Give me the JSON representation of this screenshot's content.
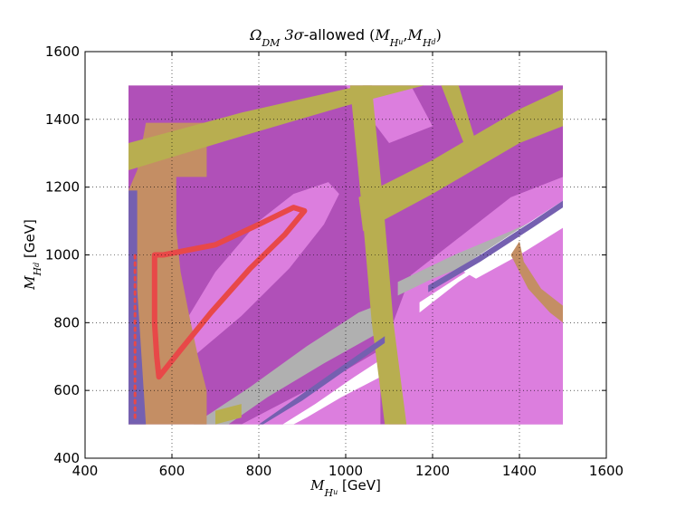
{
  "chart_data": {
    "type": "scatter",
    "title_parts": {
      "omega": "Ω",
      "omega_sub": "DM",
      "sigma": " 3σ",
      "allowed": "-allowed ",
      "open": "(",
      "mhu": "M",
      "hu_sub": "H",
      "hu_subsub": "u",
      "comma": ",",
      "mhd": "M",
      "hd_sub": "H",
      "hd_subsub": "d",
      "close": ")"
    },
    "xlabel_parts": {
      "m": "M",
      "sub": "H",
      "subsub": "u",
      "unit": " [GeV]"
    },
    "ylabel_parts": {
      "m": "M",
      "sub": "H",
      "subsub": "d",
      "unit": " [GeV]"
    },
    "xlim": [
      400,
      1600
    ],
    "ylim": [
      400,
      1600
    ],
    "xticks": [
      "400",
      "600",
      "800",
      "1000",
      "1200",
      "1400",
      "1600"
    ],
    "yticks": [
      "400",
      "600",
      "800",
      "1000",
      "1200",
      "1400",
      "1600"
    ],
    "grid": true,
    "colors": {
      "magenta": "#b050b8",
      "pink": "#dc7ede",
      "olive": "#b8ae50",
      "tan": "#c48e64",
      "gray": "#b0b0b0",
      "purple": "#7560b0",
      "red": "#e84848",
      "white": "#ffffff"
    },
    "regions": [
      {
        "name": "magenta-base",
        "color": "magenta",
        "opacity": 1,
        "points": [
          [
            500,
            500
          ],
          [
            1500,
            500
          ],
          [
            1500,
            1500
          ],
          [
            500,
            1500
          ]
        ]
      },
      {
        "name": "pink-lower-right",
        "color": "pink",
        "opacity": 1,
        "points": [
          [
            1100,
            500
          ],
          [
            1500,
            500
          ],
          [
            1500,
            1230
          ],
          [
            1380,
            1170
          ],
          [
            1150,
            940
          ],
          [
            1080,
            700
          ]
        ]
      },
      {
        "name": "pink-triangle-region",
        "color": "pink",
        "opacity": 1,
        "points": [
          [
            560,
            620
          ],
          [
            620,
            780
          ],
          [
            700,
            950
          ],
          [
            800,
            1100
          ],
          [
            880,
            1180
          ],
          [
            960,
            1215
          ],
          [
            985,
            1180
          ],
          [
            950,
            1090
          ],
          [
            870,
            960
          ],
          [
            760,
            820
          ],
          [
            640,
            690
          ]
        ]
      },
      {
        "name": "pink-bottom-wedge",
        "color": "pink",
        "opacity": 1,
        "points": [
          [
            760,
            500
          ],
          [
            880,
            580
          ],
          [
            1000,
            660
          ],
          [
            1080,
            720
          ],
          [
            1080,
            500
          ]
        ]
      },
      {
        "name": "pink-upper-left-strip",
        "color": "pink",
        "opacity": 1,
        "points": [
          [
            1000,
            1500
          ],
          [
            1150,
            1500
          ],
          [
            1200,
            1380
          ],
          [
            1100,
            1330
          ]
        ]
      },
      {
        "name": "gray-lower-band",
        "color": "gray",
        "opacity": 1,
        "points": [
          [
            650,
            500
          ],
          [
            780,
            610
          ],
          [
            910,
            730
          ],
          [
            1030,
            830
          ],
          [
            1090,
            860
          ],
          [
            1090,
            780
          ],
          [
            950,
            680
          ],
          [
            820,
            580
          ],
          [
            730,
            500
          ]
        ]
      },
      {
        "name": "gray-upper-band",
        "color": "gray",
        "opacity": 1,
        "points": [
          [
            1120,
            920
          ],
          [
            1250,
            1000
          ],
          [
            1380,
            1070
          ],
          [
            1500,
            1140
          ],
          [
            1500,
            1090
          ],
          [
            1360,
            1010
          ],
          [
            1200,
            930
          ],
          [
            1120,
            880
          ]
        ]
      },
      {
        "name": "white-lower-band",
        "color": "white",
        "opacity": 1,
        "points": [
          [
            855,
            500
          ],
          [
            930,
            560
          ],
          [
            1020,
            640
          ],
          [
            1080,
            690
          ],
          [
            1080,
            640
          ],
          [
            990,
            580
          ],
          [
            910,
            520
          ],
          [
            880,
            500
          ]
        ]
      },
      {
        "name": "white-upper-band-1",
        "color": "white",
        "opacity": 1,
        "points": [
          [
            1170,
            860
          ],
          [
            1290,
            960
          ],
          [
            1410,
            1060
          ],
          [
            1480,
            1130
          ],
          [
            1480,
            1100
          ],
          [
            1380,
            1020
          ],
          [
            1260,
            920
          ],
          [
            1170,
            830
          ]
        ]
      },
      {
        "name": "white-upper-band-2",
        "color": "white",
        "opacity": 1,
        "points": [
          [
            1260,
            960
          ],
          [
            1380,
            1060
          ],
          [
            1500,
            1160
          ],
          [
            1500,
            1080
          ],
          [
            1400,
            1000
          ],
          [
            1300,
            930
          ]
        ]
      },
      {
        "name": "tan-left-block",
        "color": "tan",
        "opacity": 1,
        "points": [
          [
            500,
            500
          ],
          [
            680,
            500
          ],
          [
            680,
            600
          ],
          [
            660,
            700
          ],
          [
            640,
            820
          ],
          [
            620,
            950
          ],
          [
            610,
            1070
          ],
          [
            610,
            1230
          ],
          [
            680,
            1230
          ],
          [
            680,
            1390
          ],
          [
            540,
            1390
          ],
          [
            520,
            1250
          ],
          [
            500,
            1190
          ]
        ]
      },
      {
        "name": "tan-right-curve",
        "color": "tan",
        "opacity": 1,
        "points": [
          [
            1380,
            1000
          ],
          [
            1420,
            900
          ],
          [
            1470,
            830
          ],
          [
            1500,
            800
          ],
          [
            1500,
            850
          ],
          [
            1450,
            900
          ],
          [
            1410,
            980
          ],
          [
            1400,
            1040
          ]
        ]
      },
      {
        "name": "olive-top-band",
        "color": "olive",
        "opacity": 1,
        "points": [
          [
            500,
            1330
          ],
          [
            760,
            1420
          ],
          [
            1000,
            1490
          ],
          [
            1040,
            1500
          ],
          [
            1180,
            1500
          ],
          [
            1000,
            1440
          ],
          [
            760,
            1350
          ],
          [
            500,
            1250
          ]
        ]
      },
      {
        "name": "olive-diagonal-band",
        "color": "olive",
        "opacity": 1,
        "points": [
          [
            1030,
            1170
          ],
          [
            1200,
            1280
          ],
          [
            1400,
            1430
          ],
          [
            1500,
            1490
          ],
          [
            1500,
            1380
          ],
          [
            1400,
            1330
          ],
          [
            1200,
            1180
          ],
          [
            1040,
            1070
          ]
        ]
      },
      {
        "name": "olive-vertical-band",
        "color": "olive",
        "opacity": 1,
        "points": [
          [
            1010,
            1500
          ],
          [
            1060,
            1500
          ],
          [
            1090,
            1100
          ],
          [
            1110,
            800
          ],
          [
            1140,
            500
          ],
          [
            1090,
            500
          ],
          [
            1060,
            800
          ],
          [
            1040,
            1100
          ]
        ]
      },
      {
        "name": "olive-small-streak",
        "color": "olive",
        "opacity": 1,
        "points": [
          [
            1220,
            1500
          ],
          [
            1260,
            1500
          ],
          [
            1310,
            1290
          ],
          [
            1290,
            1270
          ]
        ]
      },
      {
        "name": "olive-lower-left",
        "color": "olive",
        "opacity": 1,
        "points": [
          [
            700,
            500
          ],
          [
            760,
            520
          ],
          [
            760,
            560
          ],
          [
            700,
            540
          ]
        ]
      },
      {
        "name": "purple-left-strip",
        "color": "purple",
        "opacity": 1,
        "points": [
          [
            500,
            500
          ],
          [
            540,
            500
          ],
          [
            530,
            700
          ],
          [
            520,
            900
          ],
          [
            520,
            1190
          ],
          [
            500,
            1190
          ]
        ]
      },
      {
        "name": "purple-lower-diagonal",
        "color": "purple",
        "opacity": 1,
        "points": [
          [
            800,
            500
          ],
          [
            900,
            590
          ],
          [
            1000,
            680
          ],
          [
            1090,
            760
          ],
          [
            1090,
            740
          ],
          [
            1000,
            660
          ],
          [
            900,
            570
          ],
          [
            810,
            500
          ]
        ]
      },
      {
        "name": "purple-upper-diagonal",
        "color": "purple",
        "opacity": 1,
        "points": [
          [
            1190,
            910
          ],
          [
            1310,
            1000
          ],
          [
            1430,
            1100
          ],
          [
            1500,
            1160
          ],
          [
            1500,
            1140
          ],
          [
            1430,
            1080
          ],
          [
            1310,
            980
          ],
          [
            1190,
            890
          ]
        ]
      }
    ],
    "curves": [
      {
        "name": "red-triangle",
        "color": "red",
        "width": 6,
        "points": [
          [
            560,
            1000
          ],
          [
            580,
            1000
          ],
          [
            700,
            1030
          ],
          [
            800,
            1090
          ],
          [
            880,
            1140
          ],
          [
            905,
            1130
          ],
          [
            860,
            1060
          ],
          [
            780,
            960
          ],
          [
            690,
            830
          ],
          [
            620,
            720
          ],
          [
            570,
            640
          ],
          [
            565,
            700
          ],
          [
            560,
            800
          ],
          [
            560,
            1000
          ]
        ]
      },
      {
        "name": "red-left-vertical",
        "color": "red",
        "width": 3,
        "dashed": true,
        "points": [
          [
            515,
            520
          ],
          [
            515,
            1000
          ]
        ]
      }
    ]
  }
}
